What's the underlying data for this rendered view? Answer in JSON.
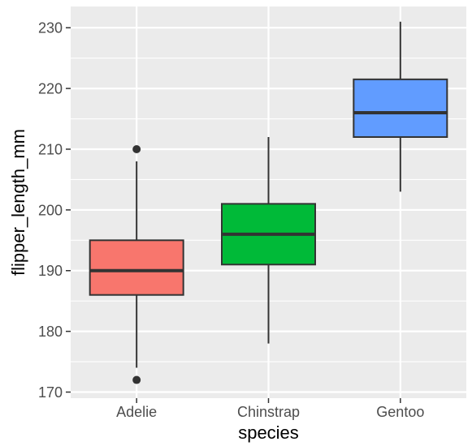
{
  "chart_data": {
    "type": "boxplot",
    "xlabel": "species",
    "ylabel": "flipper_length_mm",
    "ylim": [
      169,
      233.5
    ],
    "yticks": [
      170,
      180,
      190,
      200,
      210,
      220,
      230
    ],
    "grid": true,
    "legend": "none",
    "categories": [
      "Adelie",
      "Chinstrap",
      "Gentoo"
    ],
    "boxes": [
      {
        "category": "Adelie",
        "whisker_low": 174,
        "q1": 186,
        "median": 190,
        "q3": 195,
        "whisker_high": 208,
        "outliers": [
          172,
          210
        ],
        "color": "#F8766D"
      },
      {
        "category": "Chinstrap",
        "whisker_low": 178,
        "q1": 191,
        "median": 196,
        "q3": 201,
        "whisker_high": 212,
        "outliers": [],
        "color": "#00BA38"
      },
      {
        "category": "Gentoo",
        "whisker_low": 203,
        "q1": 212,
        "median": 216,
        "q3": 221.5,
        "whisker_high": 231,
        "outliers": [],
        "color": "#619CFF"
      }
    ],
    "panel_background": "#EBEBEB",
    "grid_color": "#FFFFFF",
    "box_outline": "#333333"
  }
}
